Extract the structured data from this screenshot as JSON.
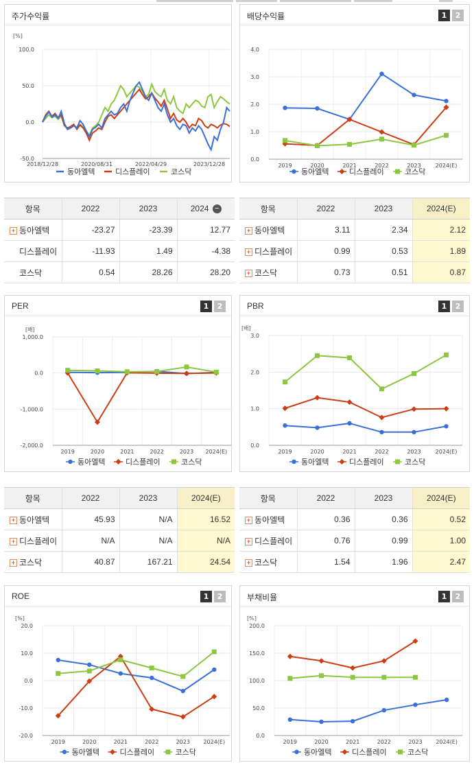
{
  "colors": {
    "dongah": "#3a6fd8",
    "display": "#cc3d12",
    "kosdaq": "#8dc63f"
  },
  "stock_return": {
    "title": "주가수익률",
    "legend": [
      "동아엘텍",
      "디스플레이",
      "코스닥"
    ],
    "chart_data": {
      "type": "line",
      "unit": "[%]",
      "x_ticks": [
        "2018/12/28",
        "2020/08/31",
        "2022/04/29",
        "2023/12/28"
      ],
      "y_ticks": [
        "100.0",
        "50.0",
        "0.0",
        "-50.0"
      ],
      "ylim": [
        -50,
        100
      ],
      "n_points": 61,
      "series": [
        {
          "name": "동아엘텍",
          "values": [
            0,
            8,
            14,
            7,
            10,
            5,
            15,
            -2,
            -10,
            -8,
            -5,
            -8,
            2,
            -3,
            -12,
            -20,
            -10,
            -7,
            -3,
            -8,
            5,
            10,
            15,
            10,
            12,
            20,
            25,
            15,
            30,
            40,
            50,
            55,
            45,
            35,
            30,
            40,
            30,
            20,
            15,
            25,
            10,
            0,
            5,
            -5,
            -10,
            -3,
            -5,
            -15,
            -8,
            -12,
            -5,
            -10,
            -20,
            -30,
            -38,
            -20,
            -25,
            -10,
            0,
            20,
            15
          ]
        },
        {
          "name": "디스플레이",
          "values": [
            0,
            10,
            15,
            8,
            12,
            6,
            10,
            -5,
            -8,
            -6,
            -3,
            -10,
            -4,
            -8,
            -15,
            -25,
            -15,
            -12,
            -8,
            -10,
            0,
            8,
            10,
            5,
            10,
            15,
            20,
            25,
            30,
            35,
            40,
            45,
            38,
            32,
            35,
            40,
            33,
            28,
            22,
            30,
            18,
            5,
            12,
            3,
            0,
            5,
            0,
            -8,
            -3,
            -5,
            5,
            2,
            -5,
            -8,
            -3,
            -5,
            -8,
            -4,
            -2,
            -3,
            -6
          ]
        },
        {
          "name": "코스닥",
          "values": [
            0,
            5,
            10,
            6,
            8,
            4,
            8,
            -4,
            -10,
            -6,
            -4,
            -8,
            -3,
            -6,
            -12,
            -18,
            -8,
            -5,
            0,
            10,
            20,
            15,
            25,
            30,
            40,
            50,
            45,
            35,
            40,
            45,
            50,
            48,
            42,
            35,
            38,
            52,
            42,
            38,
            35,
            45,
            30,
            25,
            35,
            20,
            15,
            12,
            25,
            20,
            25,
            30,
            28,
            22,
            20,
            35,
            38,
            20,
            28,
            35,
            32,
            28,
            25
          ]
        }
      ]
    }
  },
  "dividend": {
    "title": "배당수익률",
    "pager": [
      "1",
      "2"
    ],
    "legend": [
      "동아엘텍",
      "디스플레이",
      "코스닥"
    ],
    "chart_data": {
      "type": "line",
      "categories": [
        "2019",
        "2020",
        "2021",
        "2022",
        "2023",
        "2024(E)"
      ],
      "y_ticks": [
        "4.0",
        "3.0",
        "2.0",
        "1.0",
        "0.0"
      ],
      "ylim": [
        0,
        4
      ],
      "series": [
        {
          "name": "동아엘텍",
          "values": [
            1.87,
            1.85,
            1.45,
            3.11,
            2.34,
            2.12
          ]
        },
        {
          "name": "디스플레이",
          "values": [
            0.56,
            0.5,
            1.45,
            0.99,
            0.53,
            1.89
          ]
        },
        {
          "name": "코스닥",
          "values": [
            0.68,
            0.49,
            0.54,
            0.73,
            0.51,
            0.87
          ]
        }
      ]
    }
  },
  "table_return": {
    "headers": [
      "항목",
      "2022",
      "2023",
      "2024"
    ],
    "rows": [
      {
        "name": "동아엘텍",
        "plus": true,
        "v": [
          "-23.27",
          "-23.39",
          "12.77"
        ]
      },
      {
        "name": "디스플레이",
        "plus": false,
        "v": [
          "-11.93",
          "1.49",
          "-4.38"
        ]
      },
      {
        "name": "코스닥",
        "plus": false,
        "v": [
          "0.54",
          "28.26",
          "28.20"
        ]
      }
    ]
  },
  "table_dividend": {
    "headers": [
      "항목",
      "2022",
      "2023",
      "2024(E)"
    ],
    "rows": [
      {
        "name": "동아엘텍",
        "plus": true,
        "v": [
          "3.11",
          "2.34",
          "2.12"
        ]
      },
      {
        "name": "디스플레이",
        "plus": true,
        "v": [
          "0.99",
          "0.53",
          "1.89"
        ]
      },
      {
        "name": "코스닥",
        "plus": true,
        "v": [
          "0.73",
          "0.51",
          "0.87"
        ]
      }
    ]
  },
  "per": {
    "title": "PER",
    "pager": [
      "1",
      "2"
    ],
    "legend": [
      "동아엘텍",
      "디스플레이",
      "코스닥"
    ],
    "chart_data": {
      "type": "line",
      "unit": "[배]",
      "categories": [
        "2019",
        "2020",
        "2021",
        "2022",
        "2023",
        "2024(E)"
      ],
      "y_ticks": [
        "1,000.0",
        "0.0",
        "-1,000.0",
        "-2,000.0"
      ],
      "ylim": [
        -2000,
        1000
      ],
      "series": [
        {
          "name": "동아엘텍",
          "values": [
            20,
            10,
            15,
            45.93,
            -15,
            16.52
          ]
        },
        {
          "name": "디스플레이",
          "values": [
            0,
            -1360,
            5,
            -5,
            -10,
            0
          ]
        },
        {
          "name": "코스닥",
          "values": [
            75,
            60,
            35,
            40.87,
            167.21,
            24.54
          ]
        }
      ]
    }
  },
  "pbr": {
    "title": "PBR",
    "pager": [
      "1",
      "2"
    ],
    "legend": [
      "동아엘텍",
      "디스플레이",
      "코스닥"
    ],
    "chart_data": {
      "type": "line",
      "unit": "[배]",
      "categories": [
        "2019",
        "2020",
        "2021",
        "2022",
        "2023",
        "2024(E)"
      ],
      "y_ticks": [
        "3.0",
        "2.0",
        "1.0",
        "0.0"
      ],
      "ylim": [
        0,
        3
      ],
      "series": [
        {
          "name": "동아엘텍",
          "values": [
            0.54,
            0.48,
            0.6,
            0.36,
            0.36,
            0.52
          ]
        },
        {
          "name": "디스플레이",
          "values": [
            1.01,
            1.3,
            1.18,
            0.76,
            0.99,
            1.0
          ]
        },
        {
          "name": "코스닥",
          "values": [
            1.73,
            2.45,
            2.39,
            1.54,
            1.96,
            2.47
          ]
        }
      ]
    }
  },
  "table_per": {
    "headers": [
      "항목",
      "2022",
      "2023",
      "2024(E)"
    ],
    "rows": [
      {
        "name": "동아엘텍",
        "plus": true,
        "v": [
          "45.93",
          "N/A",
          "16.52"
        ]
      },
      {
        "name": "디스플레이",
        "plus": true,
        "v": [
          "N/A",
          "N/A",
          "N/A"
        ]
      },
      {
        "name": "코스닥",
        "plus": true,
        "v": [
          "40.87",
          "167.21",
          "24.54"
        ]
      }
    ]
  },
  "table_pbr": {
    "headers": [
      "항목",
      "2022",
      "2023",
      "2024(E)"
    ],
    "rows": [
      {
        "name": "동아엘텍",
        "plus": true,
        "v": [
          "0.36",
          "0.36",
          "0.52"
        ]
      },
      {
        "name": "디스플레이",
        "plus": true,
        "v": [
          "0.76",
          "0.99",
          "1.00"
        ]
      },
      {
        "name": "코스닥",
        "plus": true,
        "v": [
          "1.54",
          "1.96",
          "2.47"
        ]
      }
    ]
  },
  "roe": {
    "title": "ROE",
    "pager": [
      "1",
      "2"
    ],
    "legend": [
      "동아엘텍",
      "디스플레이",
      "코스닥"
    ],
    "chart_data": {
      "type": "line",
      "unit": "[%]",
      "categories": [
        "2019",
        "2020",
        "2021",
        "2022",
        "2023",
        "2024(E)"
      ],
      "y_ticks": [
        "20.0",
        "10.0",
        "0.0",
        "-10.0",
        "-20.0"
      ],
      "ylim": [
        -20,
        20
      ],
      "series": [
        {
          "name": "동아엘텍",
          "values": [
            7.5,
            5.8,
            2.6,
            1.0,
            -3.8,
            4.0
          ]
        },
        {
          "name": "디스플레이",
          "values": [
            -12.8,
            -0.2,
            8.8,
            -10.4,
            -13.2,
            -5.8
          ]
        },
        {
          "name": "코스닥",
          "values": [
            2.6,
            3.5,
            7.6,
            4.6,
            1.5,
            10.5
          ]
        }
      ]
    }
  },
  "debt": {
    "title": "부채비율",
    "pager": [
      "1",
      "2"
    ],
    "legend": [
      "동아엘텍",
      "디스플레이",
      "코스닥"
    ],
    "chart_data": {
      "type": "line",
      "unit": "[%]",
      "categories": [
        "2019",
        "2020",
        "2021",
        "2022",
        "2023",
        "2024(E)"
      ],
      "y_ticks": [
        "200.0",
        "150.0",
        "100.0",
        "50.0",
        "0.0"
      ],
      "ylim": [
        0,
        200
      ],
      "series": [
        {
          "name": "동아엘텍",
          "values": [
            29,
            25,
            26,
            46,
            56,
            65
          ]
        },
        {
          "name": "디스플레이",
          "values": [
            144,
            136,
            123,
            136,
            172,
            null
          ]
        },
        {
          "name": "코스닥",
          "values": [
            104,
            109,
            106,
            106,
            106,
            null
          ]
        }
      ]
    }
  }
}
